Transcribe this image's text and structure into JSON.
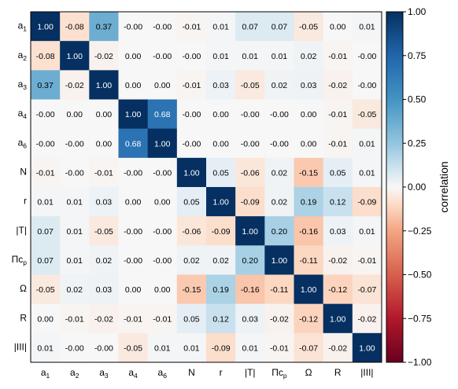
{
  "chart_data": {
    "type": "heatmap",
    "title": "",
    "xlabel": "",
    "ylabel": "",
    "labels": [
      {
        "base": "a",
        "sub": "1"
      },
      {
        "base": "a",
        "sub": "2"
      },
      {
        "base": "a",
        "sub": "3"
      },
      {
        "base": "a",
        "sub": "4"
      },
      {
        "base": "a",
        "sub": "6"
      },
      {
        "base": "N",
        "sub": ""
      },
      {
        "base": "r",
        "sub": ""
      },
      {
        "base": "|T|",
        "sub": ""
      },
      {
        "base": "Πc",
        "sub": "p"
      },
      {
        "base": "Ω",
        "sub": ""
      },
      {
        "base": "R",
        "sub": ""
      },
      {
        "base": "|III|",
        "sub": ""
      }
    ],
    "matrix": [
      [
        1.0,
        -0.08,
        0.37,
        -0.0,
        -0.0,
        -0.01,
        0.01,
        0.07,
        0.07,
        -0.05,
        0.0,
        0.01
      ],
      [
        -0.08,
        1.0,
        -0.02,
        0.0,
        -0.0,
        -0.0,
        0.01,
        0.01,
        0.01,
        0.02,
        -0.01,
        -0.0
      ],
      [
        0.37,
        -0.02,
        1.0,
        0.0,
        0.0,
        -0.01,
        0.03,
        -0.05,
        0.02,
        0.03,
        -0.02,
        -0.0
      ],
      [
        -0.0,
        0.0,
        0.0,
        1.0,
        0.68,
        -0.0,
        0.0,
        -0.0,
        -0.0,
        0.0,
        -0.01,
        -0.05
      ],
      [
        -0.0,
        -0.0,
        0.0,
        0.68,
        1.0,
        -0.0,
        0.0,
        -0.0,
        -0.0,
        0.0,
        -0.01,
        0.01
      ],
      [
        -0.01,
        -0.0,
        -0.01,
        -0.0,
        -0.0,
        1.0,
        0.05,
        -0.06,
        0.02,
        -0.15,
        0.05,
        0.01
      ],
      [
        0.01,
        0.01,
        0.03,
        0.0,
        0.0,
        0.05,
        1.0,
        -0.09,
        0.02,
        0.19,
        0.12,
        -0.09
      ],
      [
        0.07,
        0.01,
        -0.05,
        -0.0,
        -0.0,
        -0.06,
        -0.09,
        1.0,
        0.2,
        -0.16,
        0.03,
        0.01
      ],
      [
        0.07,
        0.01,
        0.02,
        -0.0,
        -0.0,
        0.02,
        0.02,
        0.2,
        1.0,
        -0.11,
        -0.02,
        -0.01
      ],
      [
        -0.05,
        0.02,
        0.03,
        0.0,
        0.0,
        -0.15,
        0.19,
        -0.16,
        -0.11,
        1.0,
        -0.12,
        -0.07
      ],
      [
        0.0,
        -0.01,
        -0.02,
        -0.01,
        -0.01,
        0.05,
        0.12,
        0.03,
        -0.02,
        -0.12,
        1.0,
        -0.02
      ],
      [
        0.01,
        -0.0,
        -0.0,
        -0.05,
        0.01,
        0.01,
        -0.09,
        0.01,
        -0.01,
        -0.07,
        -0.02,
        1.0
      ]
    ],
    "cell_labels": [
      [
        "1.00",
        "-0.08",
        "0.37",
        "-0.00",
        "-0.00",
        "-0.01",
        "0.01",
        "0.07",
        "0.07",
        "-0.05",
        "0.00",
        "0.01"
      ],
      [
        "-0.08",
        "1.00",
        "-0.02",
        "0.00",
        "-0.00",
        "-0.00",
        "0.01",
        "0.01",
        "0.01",
        "0.02",
        "-0.01",
        "-0.00"
      ],
      [
        "0.37",
        "-0.02",
        "1.00",
        "0.00",
        "0.00",
        "-0.01",
        "0.03",
        "-0.05",
        "0.02",
        "0.03",
        "-0.02",
        "-0.00"
      ],
      [
        "-0.00",
        "0.00",
        "0.00",
        "1.00",
        "0.68",
        "-0.00",
        "0.00",
        "-0.00",
        "-0.00",
        "0.00",
        "-0.01",
        "-0.05"
      ],
      [
        "-0.00",
        "-0.00",
        "0.00",
        "0.68",
        "1.00",
        "-0.00",
        "0.00",
        "-0.00",
        "-0.00",
        "0.00",
        "-0.01",
        "0.01"
      ],
      [
        "-0.01",
        "-0.00",
        "-0.01",
        "-0.00",
        "-0.00",
        "1.00",
        "0.05",
        "-0.06",
        "0.02",
        "-0.15",
        "0.05",
        "0.01"
      ],
      [
        "0.01",
        "0.01",
        "0.03",
        "0.00",
        "0.00",
        "0.05",
        "1.00",
        "-0.09",
        "0.02",
        "0.19",
        "0.12",
        "-0.09"
      ],
      [
        "0.07",
        "0.01",
        "-0.05",
        "-0.00",
        "-0.00",
        "-0.06",
        "-0.09",
        "1.00",
        "0.20",
        "-0.16",
        "0.03",
        "0.01"
      ],
      [
        "0.07",
        "0.01",
        "0.02",
        "-0.00",
        "-0.00",
        "0.02",
        "0.02",
        "0.20",
        "1.00",
        "-0.11",
        "-0.02",
        "-0.01"
      ],
      [
        "-0.05",
        "0.02",
        "0.03",
        "0.00",
        "0.00",
        "-0.15",
        "0.19",
        "-0.16",
        "-0.11",
        "1.00",
        "-0.12",
        "-0.07"
      ],
      [
        "0.00",
        "-0.01",
        "-0.02",
        "-0.01",
        "-0.01",
        "0.05",
        "0.12",
        "0.03",
        "-0.02",
        "-0.12",
        "1.00",
        "-0.02"
      ],
      [
        "0.01",
        "-0.00",
        "-0.00",
        "-0.05",
        "0.01",
        "0.01",
        "-0.09",
        "0.01",
        "-0.01",
        "-0.07",
        "-0.02",
        "1.00"
      ]
    ],
    "colorbar": {
      "label": "correlation",
      "range": [
        -1.0,
        1.0
      ],
      "ticks": [
        1.0,
        0.75,
        0.5,
        0.25,
        0.0,
        -0.25,
        -0.5,
        -0.75,
        -1.0
      ],
      "tick_labels": [
        "1.00",
        "0.75",
        "0.50",
        "0.25",
        "0.00",
        "−0.25",
        "−0.50",
        "−0.75",
        "−1.00"
      ],
      "colormap": "RdBu",
      "colormap_stops": [
        {
          "v": -1.0,
          "color": "#67001f"
        },
        {
          "v": -0.75,
          "color": "#b2182b"
        },
        {
          "v": -0.5,
          "color": "#d6604d"
        },
        {
          "v": -0.25,
          "color": "#f4a582"
        },
        {
          "v": -0.1,
          "color": "#fddbc7"
        },
        {
          "v": 0.0,
          "color": "#f7f7f7"
        },
        {
          "v": 0.1,
          "color": "#d1e5f0"
        },
        {
          "v": 0.25,
          "color": "#92c5de"
        },
        {
          "v": 0.5,
          "color": "#4393c3"
        },
        {
          "v": 0.75,
          "color": "#2166ac"
        },
        {
          "v": 1.0,
          "color": "#053061"
        }
      ]
    }
  }
}
